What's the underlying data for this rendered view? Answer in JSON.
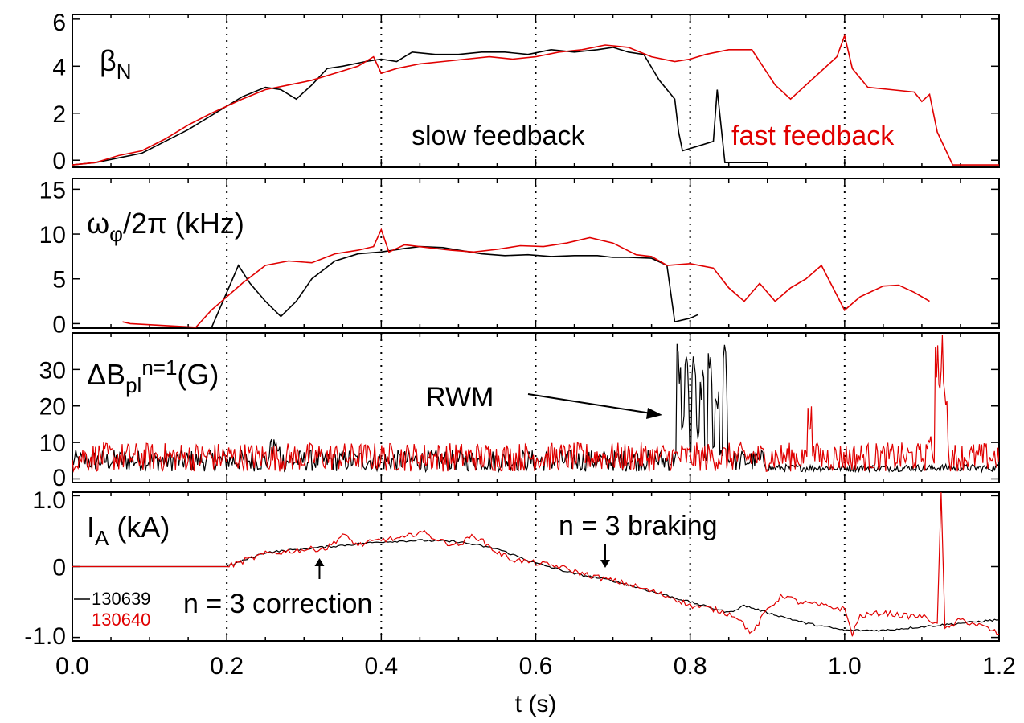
{
  "chart_data": {
    "type": "line",
    "x_axis": {
      "label": "t (s)",
      "range": [
        0.0,
        1.2
      ],
      "ticks": [
        0.0,
        0.2,
        0.4,
        0.6,
        0.8,
        1.0,
        1.2
      ],
      "tick_labels": [
        "0.0",
        "0.2",
        "0.4",
        "0.6",
        "0.8",
        "1.0",
        "1.2"
      ]
    },
    "vertical_reference_lines": [
      0.2,
      0.4,
      0.6,
      0.8,
      1.0
    ],
    "colors": {
      "130639": "#000000",
      "130640": "#e00000"
    },
    "legend": {
      "placement": "bottom-left of lower panel",
      "entries": [
        "130639",
        "130640"
      ]
    },
    "panels": [
      {
        "id": "betaN",
        "label_main": "β",
        "label_sub": "N",
        "ylim": [
          -0.3,
          6.2
        ],
        "yticks": [
          0,
          2,
          4,
          6
        ],
        "ytick_labels": [
          "0",
          "2",
          "4",
          "6"
        ],
        "annotations": [
          {
            "text": "slow feedback",
            "color": "#000000"
          },
          {
            "text": "fast feedback",
            "color": "#e00000"
          }
        ],
        "series": [
          {
            "name": "130639",
            "x": [
              0.0,
              0.03,
              0.06,
              0.09,
              0.12,
              0.15,
              0.18,
              0.2,
              0.22,
              0.25,
              0.27,
              0.29,
              0.31,
              0.33,
              0.35,
              0.38,
              0.4,
              0.42,
              0.44,
              0.47,
              0.5,
              0.53,
              0.56,
              0.59,
              0.62,
              0.65,
              0.68,
              0.7,
              0.72,
              0.74,
              0.76,
              0.78,
              0.785,
              0.79,
              0.81,
              0.83,
              0.835,
              0.845,
              0.9
            ],
            "y": [
              -0.2,
              -0.1,
              0.1,
              0.3,
              0.8,
              1.3,
              1.9,
              2.3,
              2.7,
              3.1,
              3.0,
              2.6,
              3.2,
              3.9,
              4.0,
              4.2,
              4.3,
              4.2,
              4.6,
              4.5,
              4.5,
              4.6,
              4.6,
              4.5,
              4.7,
              4.6,
              4.7,
              4.8,
              4.6,
              4.5,
              3.4,
              2.6,
              1.2,
              0.4,
              0.6,
              0.8,
              3.0,
              -0.1,
              -0.1
            ]
          },
          {
            "name": "130640",
            "x": [
              0.0,
              0.03,
              0.06,
              0.09,
              0.12,
              0.15,
              0.18,
              0.2,
              0.22,
              0.25,
              0.28,
              0.31,
              0.34,
              0.37,
              0.39,
              0.4,
              0.42,
              0.45,
              0.48,
              0.51,
              0.54,
              0.57,
              0.6,
              0.63,
              0.66,
              0.69,
              0.72,
              0.75,
              0.78,
              0.8,
              0.82,
              0.85,
              0.88,
              0.91,
              0.93,
              0.96,
              0.99,
              1.0,
              1.01,
              1.03,
              1.06,
              1.09,
              1.1,
              1.11,
              1.12,
              1.14,
              1.17,
              1.2
            ],
            "y": [
              -0.2,
              -0.1,
              0.2,
              0.4,
              0.9,
              1.5,
              2.0,
              2.3,
              2.6,
              3.0,
              3.2,
              3.4,
              3.7,
              4.0,
              4.4,
              3.7,
              3.9,
              4.1,
              4.2,
              4.3,
              4.4,
              4.3,
              4.4,
              4.6,
              4.7,
              4.9,
              4.8,
              4.4,
              4.2,
              4.3,
              4.5,
              4.7,
              4.7,
              3.2,
              2.6,
              3.5,
              4.4,
              5.3,
              3.9,
              3.1,
              3.0,
              2.9,
              2.5,
              2.8,
              1.2,
              -0.2,
              -0.2,
              -0.2
            ]
          }
        ]
      },
      {
        "id": "omega",
        "label_main": "ω",
        "label_sub": "φ",
        "label_rest": "/2π (kHz)",
        "ylim": [
          -0.5,
          16.2
        ],
        "yticks": [
          0,
          5,
          10,
          15
        ],
        "ytick_labels": [
          "0",
          "5",
          "10",
          "15"
        ],
        "series": [
          {
            "name": "130639",
            "x": [
              0.18,
              0.2,
              0.215,
              0.23,
              0.25,
              0.27,
              0.29,
              0.31,
              0.34,
              0.37,
              0.4,
              0.43,
              0.45,
              0.48,
              0.5,
              0.53,
              0.56,
              0.59,
              0.62,
              0.65,
              0.68,
              0.7,
              0.72,
              0.75,
              0.77,
              0.78,
              0.8,
              0.81
            ],
            "y": [
              -0.5,
              3.5,
              6.5,
              4.5,
              2.5,
              0.8,
              2.5,
              5.0,
              7.0,
              7.8,
              8.0,
              8.4,
              8.6,
              8.5,
              8.2,
              7.8,
              7.6,
              7.7,
              7.5,
              7.6,
              7.6,
              7.4,
              7.4,
              7.3,
              6.5,
              0.2,
              0.6,
              1.0
            ]
          },
          {
            "name": "130640",
            "x": [
              0.065,
              0.075,
              0.16,
              0.18,
              0.2,
              0.22,
              0.25,
              0.28,
              0.31,
              0.34,
              0.37,
              0.39,
              0.4,
              0.41,
              0.43,
              0.46,
              0.49,
              0.52,
              0.55,
              0.58,
              0.61,
              0.64,
              0.67,
              0.7,
              0.73,
              0.75,
              0.77,
              0.8,
              0.83,
              0.85,
              0.87,
              0.89,
              0.91,
              0.93,
              0.95,
              0.97,
              1.0,
              1.02,
              1.05,
              1.07,
              1.09,
              1.11
            ],
            "y": [
              0.2,
              0.0,
              -0.4,
              1.5,
              3.0,
              4.5,
              6.5,
              7.0,
              6.8,
              7.8,
              8.2,
              8.6,
              10.5,
              8.0,
              8.8,
              8.5,
              8.2,
              8.0,
              8.3,
              8.7,
              8.6,
              9.0,
              9.6,
              9.0,
              7.7,
              7.5,
              6.5,
              6.7,
              6.2,
              4.0,
              2.5,
              4.5,
              2.5,
              4.0,
              5.0,
              6.5,
              1.5,
              3.0,
              4.2,
              4.3,
              3.5,
              2.5
            ]
          }
        ]
      },
      {
        "id": "deltaB",
        "label_main": "ΔB",
        "label_sub": "pl",
        "label_sup": "n=1",
        "label_rest": "(G)",
        "ylim": [
          -1,
          40
        ],
        "yticks": [
          0,
          10,
          20,
          30
        ],
        "ytick_labels": [
          "0",
          "10",
          "20",
          "30"
        ],
        "annotations": [
          {
            "text": "RWM",
            "color": "#000000"
          }
        ],
        "series": [
          {
            "name": "130639",
            "baseline": "noisy 0-10 G, burst at t=0.26 s",
            "x": [
              0.78,
              0.785,
              0.79,
              0.795,
              0.8,
              0.805,
              0.81,
              0.815,
              0.82,
              0.825,
              0.83,
              0.835,
              0.84,
              0.845,
              0.85
            ],
            "y": [
              5,
              40,
              20,
              35,
              10,
              40,
              15,
              30,
              5,
              35,
              10,
              25,
              8,
              38,
              4
            ]
          },
          {
            "name": "130640",
            "baseline": "noisy 0-12 G, spikes at t=0.95 s and t=1.12 s",
            "x": [
              0.95,
              0.955,
              0.96,
              1.11,
              1.12,
              1.125,
              1.13,
              1.14
            ],
            "y": [
              8,
              21,
              8,
              12,
              40,
              40,
              30,
              6
            ]
          }
        ]
      },
      {
        "id": "IA",
        "label_main": "I",
        "label_sub": "A",
        "label_rest": " (kA)",
        "ylim": [
          -1.05,
          1.05
        ],
        "yticks": [
          -1.0,
          0,
          1.0
        ],
        "ytick_labels": [
          "-1.0",
          "0",
          "1.0"
        ],
        "annotations": [
          {
            "text": "n = 3 correction",
            "color": "#000000",
            "arrow_at_t": 0.32
          },
          {
            "text": "n = 3 braking",
            "color": "#000000",
            "arrow_at_t": 0.69
          }
        ],
        "series": [
          {
            "name": "130639",
            "x": [
              0.0,
              0.2,
              0.25,
              0.3,
              0.35,
              0.4,
              0.45,
              0.5,
              0.55,
              0.6,
              0.65,
              0.7,
              0.75,
              0.8,
              0.85,
              0.87,
              0.9,
              0.95,
              1.0,
              1.05,
              1.1,
              1.15,
              1.2
            ],
            "y": [
              0,
              0,
              0.2,
              0.25,
              0.3,
              0.35,
              0.37,
              0.35,
              0.25,
              0.05,
              -0.1,
              -0.2,
              -0.35,
              -0.5,
              -0.65,
              -0.55,
              -0.65,
              -0.8,
              -0.9,
              -0.9,
              -0.85,
              -0.8,
              -0.75
            ]
          },
          {
            "name": "130640",
            "x": [
              0.0,
              0.2,
              0.25,
              0.3,
              0.33,
              0.35,
              0.37,
              0.4,
              0.43,
              0.45,
              0.48,
              0.5,
              0.52,
              0.55,
              0.57,
              0.6,
              0.63,
              0.66,
              0.7,
              0.72,
              0.75,
              0.78,
              0.8,
              0.83,
              0.86,
              0.88,
              0.9,
              0.92,
              0.94,
              0.97,
              1.0,
              1.01,
              1.02,
              1.05,
              1.08,
              1.1,
              1.12,
              1.125,
              1.13,
              1.15,
              1.18,
              1.2
            ],
            "y": [
              0,
              0,
              0.18,
              0.24,
              0.26,
              0.45,
              0.3,
              0.38,
              0.4,
              0.5,
              0.35,
              0.3,
              0.45,
              0.2,
              0.1,
              0.05,
              0.0,
              -0.1,
              -0.2,
              -0.25,
              -0.35,
              -0.45,
              -0.55,
              -0.6,
              -0.7,
              -0.95,
              -0.6,
              -0.4,
              -0.5,
              -0.55,
              -0.6,
              -0.95,
              -0.7,
              -0.65,
              -0.7,
              -0.7,
              -0.8,
              1.05,
              -0.9,
              -0.75,
              -0.85,
              -0.95
            ]
          }
        ]
      }
    ]
  }
}
